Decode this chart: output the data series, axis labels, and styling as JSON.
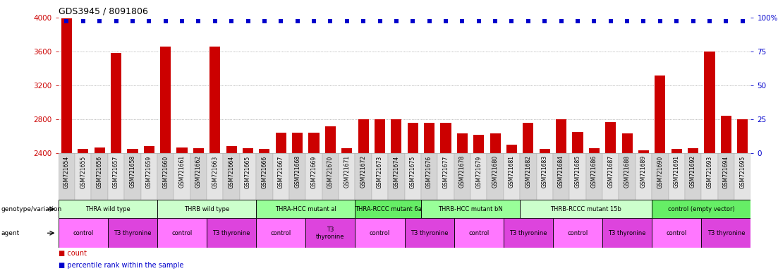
{
  "title": "GDS3945 / 8091806",
  "samples": [
    "GSM721654",
    "GSM721655",
    "GSM721656",
    "GSM721657",
    "GSM721658",
    "GSM721659",
    "GSM721660",
    "GSM721661",
    "GSM721662",
    "GSM721663",
    "GSM721664",
    "GSM721665",
    "GSM721666",
    "GSM721667",
    "GSM721668",
    "GSM721669",
    "GSM721670",
    "GSM721671",
    "GSM721672",
    "GSM721673",
    "GSM721674",
    "GSM721675",
    "GSM721676",
    "GSM721677",
    "GSM721678",
    "GSM721679",
    "GSM721680",
    "GSM721681",
    "GSM721682",
    "GSM721683",
    "GSM721684",
    "GSM721685",
    "GSM721686",
    "GSM721687",
    "GSM721688",
    "GSM721689",
    "GSM721690",
    "GSM721691",
    "GSM721692",
    "GSM721693",
    "GSM721694",
    "GSM721695"
  ],
  "counts": [
    3990,
    2450,
    2470,
    3580,
    2450,
    2480,
    3660,
    2470,
    2460,
    3660,
    2480,
    2460,
    2450,
    2640,
    2640,
    2640,
    2720,
    2460,
    2800,
    2800,
    2800,
    2760,
    2760,
    2760,
    2630,
    2620,
    2630,
    2500,
    2760,
    2450,
    2800,
    2650,
    2460,
    2770,
    2630,
    2430,
    3320,
    2450,
    2460,
    3600,
    2840,
    2800
  ],
  "ylim_left": [
    2400,
    4000
  ],
  "ylim_right": [
    0,
    100
  ],
  "yticks_left": [
    2400,
    2800,
    3200,
    3600,
    4000
  ],
  "yticks_right": [
    0,
    25,
    50,
    75,
    100
  ],
  "bar_color": "#cc0000",
  "dot_color": "#0000cc",
  "dot_size": 14,
  "genotype_groups": [
    {
      "label": "THRA wild type",
      "start": 0,
      "end": 5,
      "color": "#ccffcc"
    },
    {
      "label": "THRB wild type",
      "start": 6,
      "end": 11,
      "color": "#ccffcc"
    },
    {
      "label": "THRA-HCC mutant al",
      "start": 12,
      "end": 17,
      "color": "#99ff99"
    },
    {
      "label": "THRA-RCCC mutant 6a",
      "start": 18,
      "end": 21,
      "color": "#66ee66"
    },
    {
      "label": "THRB-HCC mutant bN",
      "start": 22,
      "end": 27,
      "color": "#99ff99"
    },
    {
      "label": "THRB-RCCC mutant 15b",
      "start": 28,
      "end": 35,
      "color": "#ccffcc"
    },
    {
      "label": "control (empty vector)",
      "start": 36,
      "end": 41,
      "color": "#66ee66"
    }
  ],
  "agent_groups": [
    {
      "label": "control",
      "start": 0,
      "end": 2,
      "color": "#ff77ff"
    },
    {
      "label": "T3 thyronine",
      "start": 3,
      "end": 5,
      "color": "#dd44dd"
    },
    {
      "label": "control",
      "start": 6,
      "end": 8,
      "color": "#ff77ff"
    },
    {
      "label": "T3 thyronine",
      "start": 9,
      "end": 11,
      "color": "#dd44dd"
    },
    {
      "label": "control",
      "start": 12,
      "end": 14,
      "color": "#ff77ff"
    },
    {
      "label": "T3\nthyronine",
      "start": 15,
      "end": 17,
      "color": "#dd44dd"
    },
    {
      "label": "control",
      "start": 18,
      "end": 20,
      "color": "#ff77ff"
    },
    {
      "label": "T3 thyronine",
      "start": 21,
      "end": 23,
      "color": "#dd44dd"
    },
    {
      "label": "control",
      "start": 24,
      "end": 26,
      "color": "#ff77ff"
    },
    {
      "label": "T3 thyronine",
      "start": 27,
      "end": 29,
      "color": "#dd44dd"
    },
    {
      "label": "control",
      "start": 30,
      "end": 32,
      "color": "#ff77ff"
    },
    {
      "label": "T3 thyronine",
      "start": 33,
      "end": 35,
      "color": "#dd44dd"
    },
    {
      "label": "control",
      "start": 36,
      "end": 38,
      "color": "#ff77ff"
    },
    {
      "label": "T3 thyronine",
      "start": 39,
      "end": 41,
      "color": "#dd44dd"
    }
  ],
  "left_tick_color": "#cc0000",
  "right_tick_color": "#0000cc",
  "background_color": "#ffffff",
  "grid_color": "#888888",
  "sample_bg_even": "#d4d4d4",
  "sample_bg_odd": "#e4e4e4"
}
